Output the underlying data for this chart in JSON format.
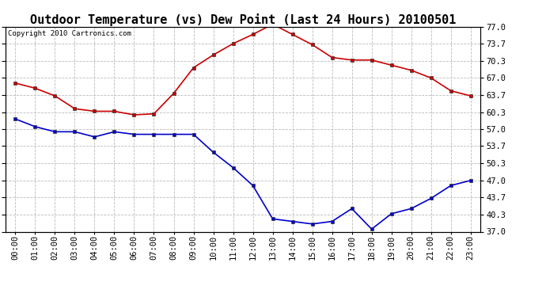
{
  "title": "Outdoor Temperature (vs) Dew Point (Last 24 Hours) 20100501",
  "copyright": "Copyright 2010 Cartronics.com",
  "hours": [
    "00:00",
    "01:00",
    "02:00",
    "03:00",
    "04:00",
    "05:00",
    "06:00",
    "07:00",
    "08:00",
    "09:00",
    "10:00",
    "11:00",
    "12:00",
    "13:00",
    "14:00",
    "15:00",
    "16:00",
    "17:00",
    "18:00",
    "19:00",
    "20:00",
    "21:00",
    "22:00",
    "23:00"
  ],
  "temp": [
    66.0,
    65.0,
    63.5,
    61.0,
    60.5,
    60.5,
    59.8,
    60.0,
    64.0,
    69.0,
    71.5,
    73.7,
    75.5,
    77.5,
    75.5,
    73.5,
    71.0,
    70.5,
    70.5,
    69.5,
    68.5,
    67.0,
    64.5,
    63.5
  ],
  "dew": [
    59.0,
    57.5,
    56.5,
    56.5,
    55.5,
    56.5,
    56.0,
    56.0,
    56.0,
    56.0,
    52.5,
    49.5,
    46.0,
    39.5,
    39.0,
    38.5,
    39.0,
    41.5,
    37.5,
    40.5,
    41.5,
    43.5,
    46.0,
    47.0
  ],
  "temp_color": "#cc0000",
  "dew_color": "#0000cc",
  "bg_color": "#ffffff",
  "grid_color": "#bbbbbb",
  "ylim": [
    37.0,
    77.0
  ],
  "yticks": [
    37.0,
    40.3,
    43.7,
    47.0,
    50.3,
    53.7,
    57.0,
    60.3,
    63.7,
    67.0,
    70.3,
    73.7,
    77.0
  ],
  "ytick_labels": [
    "37.0",
    "40.3",
    "43.7",
    "47.0",
    "50.3",
    "53.7",
    "57.0",
    "60.3",
    "63.7",
    "67.0",
    "70.3",
    "73.7",
    "77.0"
  ],
  "title_fontsize": 11,
  "tick_fontsize": 7.5,
  "copyright_fontsize": 6.5
}
